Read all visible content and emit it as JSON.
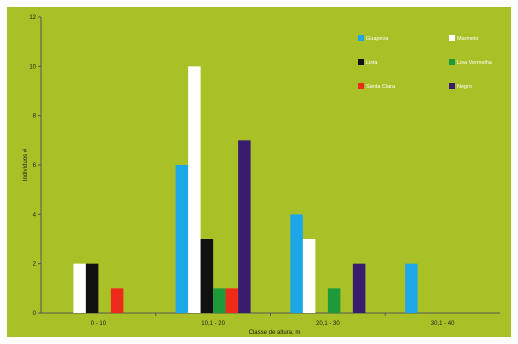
{
  "chart_data": {
    "type": "bar",
    "categories": [
      "0 - 10",
      "10,1 - 20",
      "20,1 - 30",
      "30,1 - 40"
    ],
    "ylabel": "Indivíduos #",
    "xlabel": "Classe de altura, m",
    "ylim": [
      0,
      12
    ],
    "yticks": [
      0,
      2,
      4,
      6,
      8,
      10,
      12
    ],
    "grid": false,
    "legend_position": "top-right",
    "series": [
      {
        "name": "Guapeva",
        "color": "#1ea7e8",
        "values": [
          0,
          6,
          4,
          2
        ]
      },
      {
        "name": "Marmelo",
        "color": "#ffffff",
        "values": [
          2,
          10,
          3,
          0
        ]
      },
      {
        "name": "Lixia",
        "color": "#111111",
        "values": [
          2,
          3,
          0,
          0
        ]
      },
      {
        "name": "Lixa Vermelha",
        "color": "#1f9a3a",
        "values": [
          0,
          1,
          1,
          0
        ]
      },
      {
        "name": "Santa Clara",
        "color": "#ee2a1b",
        "values": [
          1,
          1,
          0,
          0
        ]
      },
      {
        "name": "Negro",
        "color": "#3a1c6e",
        "values": [
          0,
          7,
          2,
          0
        ]
      }
    ],
    "colors": {
      "background": "#a9c127",
      "frame": "#ffffff"
    }
  }
}
